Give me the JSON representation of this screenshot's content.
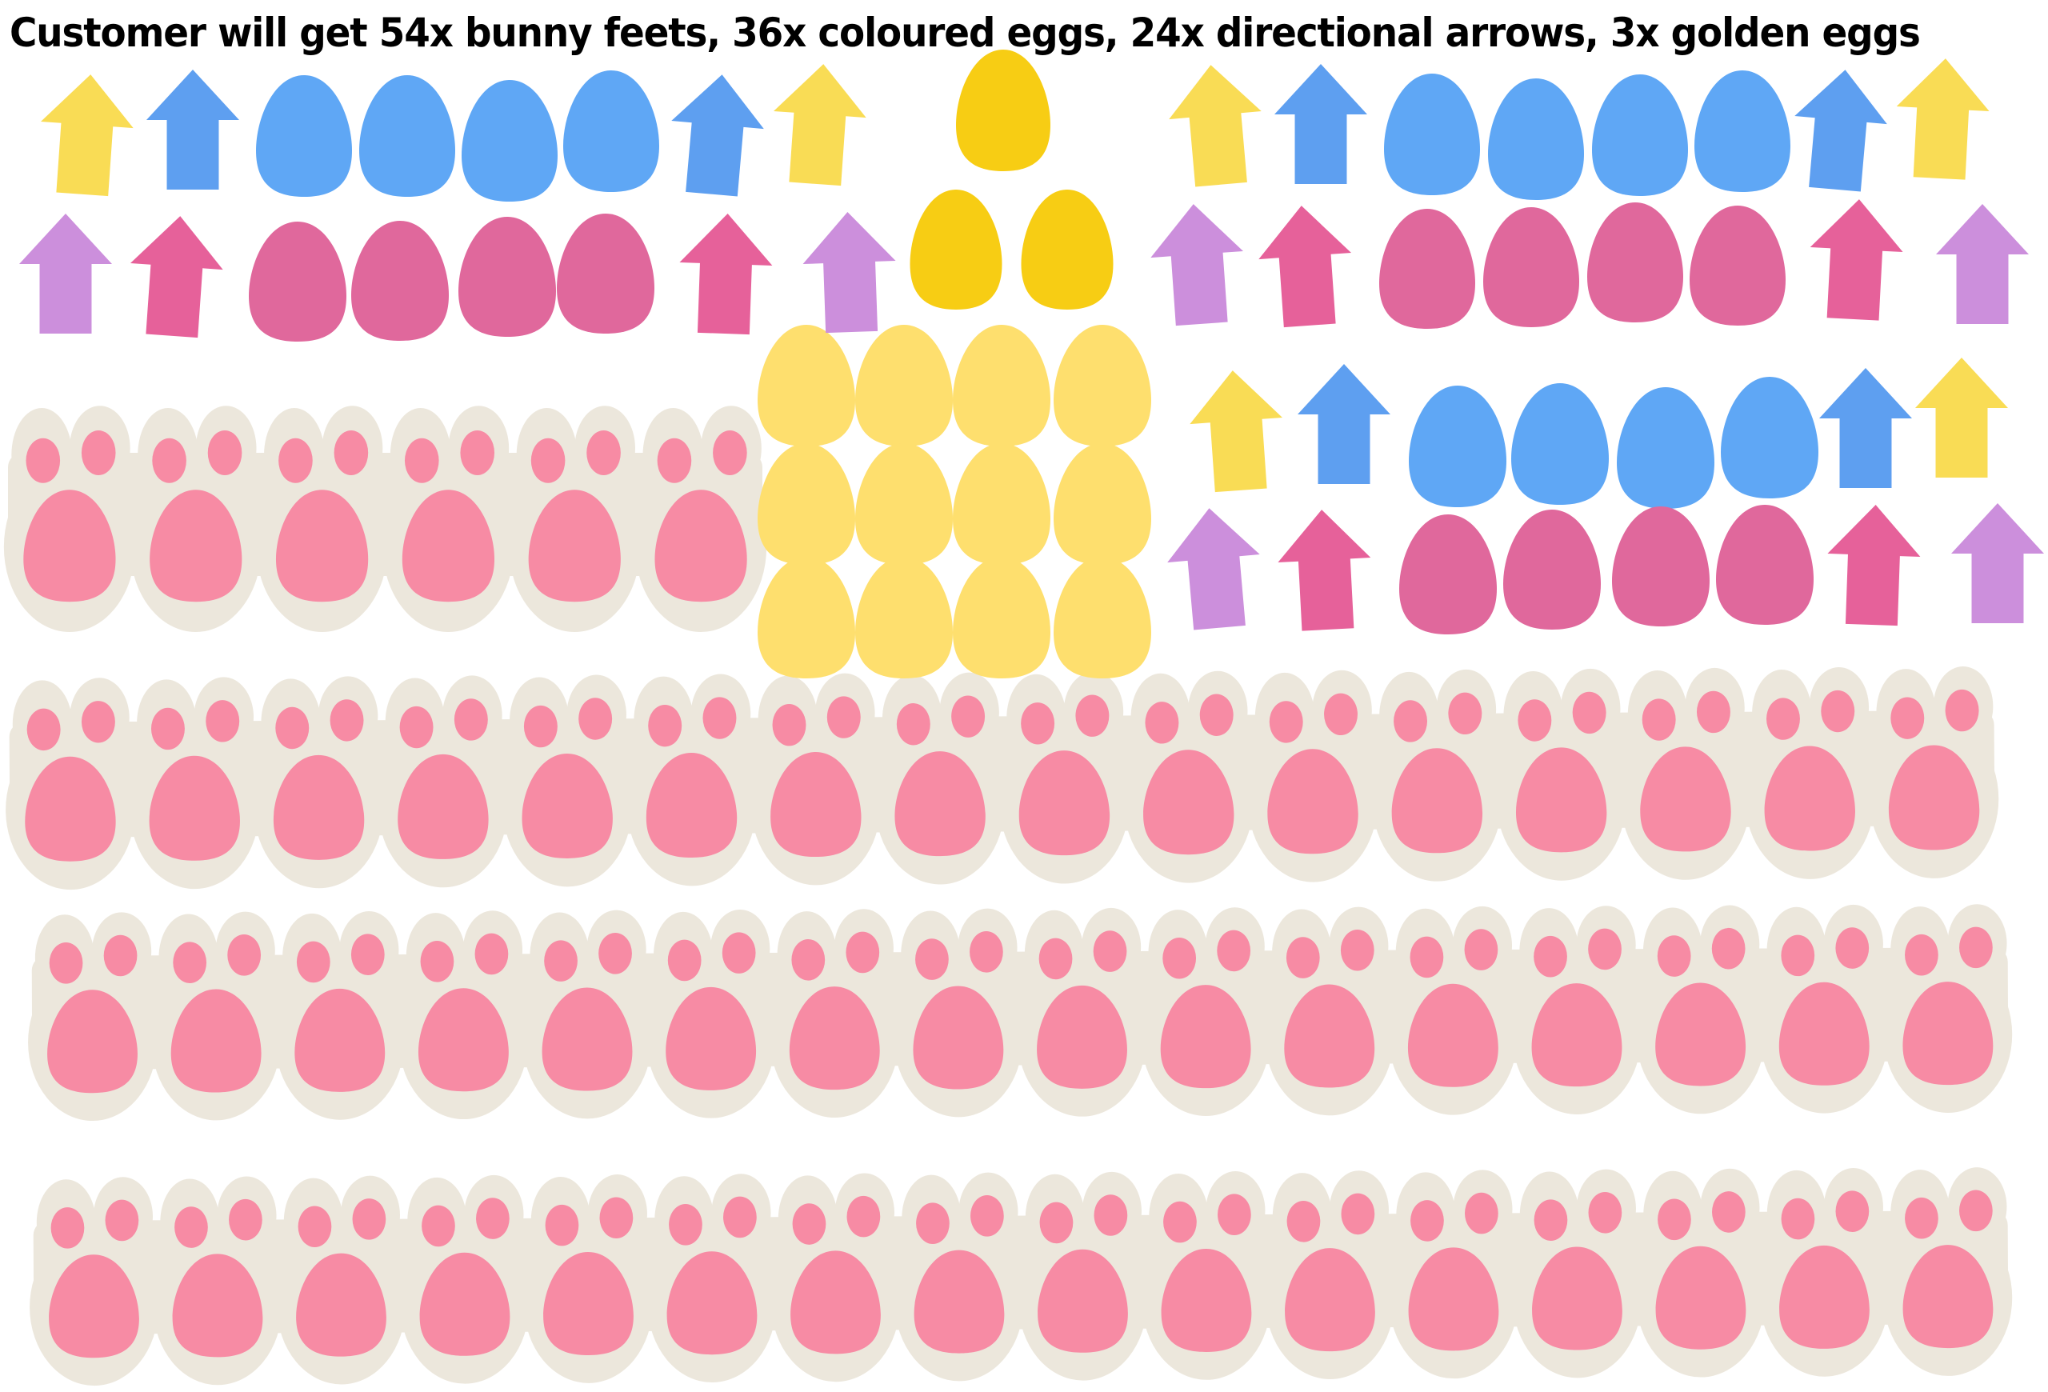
{
  "banner": {
    "text": "Customer will get 54x bunny feets, 36x coloured eggs, 24x directional arrows, 3x golden eggs"
  },
  "contents": {
    "bunny_feet": 54,
    "coloured_eggs": 36,
    "directional_arrows": 24,
    "golden_eggs": 3
  },
  "colors": {
    "background": "#ffffff",
    "banner_text": "#000000",
    "foot_backing": "#ece7dc",
    "foot_pink": "#f78ba4",
    "egg_blue": "#5fa7f5",
    "egg_pink": "#e0689c",
    "egg_yellow": "#fedf6e",
    "egg_golden": "#f7cd14",
    "arrow_yellow": "#f9dc55",
    "arrow_blue": "#5e9ff0",
    "arrow_purple": "#cc8fdc",
    "arrow_pink": "#e6619a"
  }
}
